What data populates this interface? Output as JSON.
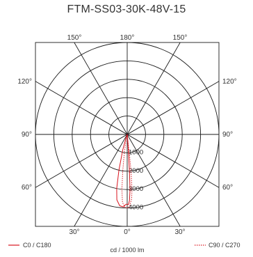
{
  "chart_data": {
    "type": "polar",
    "title": "FTM-SS03-30K-48V-15",
    "unit_label": "cd / 1000 lm",
    "radial_max": 5000,
    "radial_ticks": [
      1000,
      2000,
      3000,
      4000
    ],
    "radial_tick_labels": [
      "1000",
      "2000",
      "3000",
      "4000"
    ],
    "angle_tick_labels": [
      {
        "angle": 180,
        "text": "180°",
        "side": "top"
      },
      {
        "angle": 150,
        "text": "150°",
        "side": "top-left"
      },
      {
        "angle": 150,
        "text": "150°",
        "side": "top-right"
      },
      {
        "angle": 120,
        "text": "120°",
        "side": "left"
      },
      {
        "angle": 120,
        "text": "120°",
        "side": "right"
      },
      {
        "angle": 90,
        "text": "90°",
        "side": "left"
      },
      {
        "angle": 90,
        "text": "90°",
        "side": "right"
      },
      {
        "angle": 60,
        "text": "60°",
        "side": "left"
      },
      {
        "angle": 60,
        "text": "60°",
        "side": "right"
      },
      {
        "angle": 30,
        "text": "30°",
        "side": "bottom-left"
      },
      {
        "angle": 30,
        "text": "30°",
        "side": "bottom-right"
      },
      {
        "angle": 0,
        "text": "0°",
        "side": "bottom"
      }
    ],
    "series": [
      {
        "name": "C0 / C180",
        "color": "#d9141e",
        "style": "solid",
        "points": [
          {
            "angle": -20,
            "cd": 200
          },
          {
            "angle": -16,
            "cd": 900
          },
          {
            "angle": -13,
            "cd": 2000
          },
          {
            "angle": -11,
            "cd": 3000
          },
          {
            "angle": -9,
            "cd": 3600
          },
          {
            "angle": -6,
            "cd": 3900
          },
          {
            "angle": -3,
            "cd": 3950
          },
          {
            "angle": -1,
            "cd": 3800
          },
          {
            "angle": 0,
            "cd": 3800
          },
          {
            "angle": 1,
            "cd": 3820
          },
          {
            "angle": 2,
            "cd": 3600
          },
          {
            "angle": 3,
            "cd": 3000
          },
          {
            "angle": 3.5,
            "cd": 2000
          },
          {
            "angle": 4,
            "cd": 1000
          },
          {
            "angle": 5,
            "cd": 200
          }
        ]
      },
      {
        "name": "C90 / C270",
        "color": "#d9141e",
        "style": "dotted",
        "points": [
          {
            "angle": -13,
            "cd": 200
          },
          {
            "angle": -9,
            "cd": 1000
          },
          {
            "angle": -7,
            "cd": 2000
          },
          {
            "angle": -5.5,
            "cd": 3000
          },
          {
            "angle": -4,
            "cd": 3700
          },
          {
            "angle": -2,
            "cd": 3950
          },
          {
            "angle": 0,
            "cd": 4000
          },
          {
            "angle": 2,
            "cd": 3900
          },
          {
            "angle": 4,
            "cd": 3500
          },
          {
            "angle": 5,
            "cd": 3000
          },
          {
            "angle": 6,
            "cd": 2000
          },
          {
            "angle": 6.5,
            "cd": 1000
          },
          {
            "angle": 7,
            "cd": 200
          }
        ]
      }
    ],
    "grid": true
  }
}
